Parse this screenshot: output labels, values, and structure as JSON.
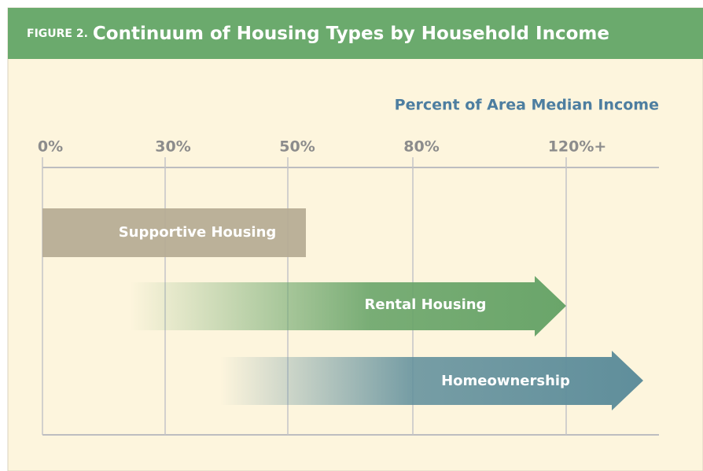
{
  "header": {
    "figure_label": "FIGURE 2.",
    "title": "Continuum of Housing Types by Household Income"
  },
  "axis_title": "Percent of Area Median Income",
  "ticks": [
    "0%",
    "30%",
    "50%",
    "80%",
    "120%+"
  ],
  "bars": [
    {
      "label": "Supportive Housing"
    },
    {
      "label": "Rental Housing"
    },
    {
      "label": "Homeownership"
    }
  ]
}
